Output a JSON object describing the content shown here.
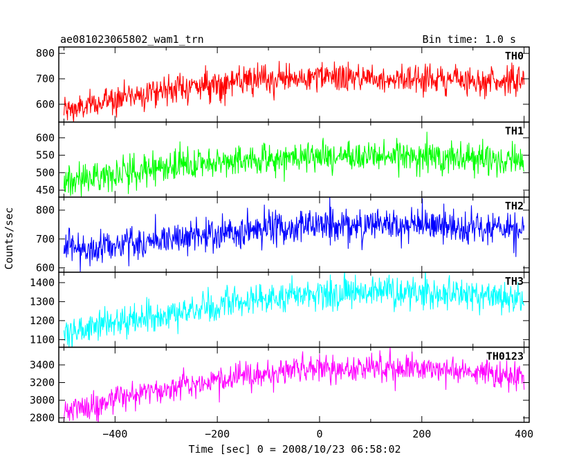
{
  "header": {
    "title": "ae081023065802_wam1_trn",
    "bin_time": "Bin time: 1.0 s"
  },
  "chart_data": {
    "type": "line",
    "xlabel": "Time [sec] 0 = 2008/10/23 06:58:02",
    "ylabel": "Counts/sec",
    "xlim": [
      -510,
      410
    ],
    "xticks": [
      -400,
      -200,
      0,
      200,
      400
    ],
    "xtick_labels": [
      "−400",
      "−200",
      "0",
      "200",
      "400"
    ],
    "panels": [
      {
        "name": "TH0",
        "color": "#ff0000",
        "ylim": [
          530,
          825
        ],
        "yticks": [
          600,
          700,
          800
        ],
        "ytick_labels": [
          "600",
          "700",
          "800"
        ],
        "trend": {
          "x": [
            -500,
            -450,
            -400,
            -300,
            -200,
            -100,
            0,
            100,
            200,
            300,
            400
          ],
          "y": [
            575,
            590,
            625,
            660,
            680,
            695,
            705,
            705,
            700,
            695,
            690
          ]
        },
        "noise_sd": 28
      },
      {
        "name": "TH1",
        "color": "#00ff00",
        "ylim": [
          430,
          645
        ],
        "yticks": [
          450,
          500,
          550,
          600
        ],
        "ytick_labels": [
          "450",
          "500",
          "550",
          "600"
        ],
        "trend": {
          "x": [
            -500,
            -450,
            -400,
            -300,
            -200,
            -100,
            0,
            100,
            200,
            300,
            400
          ],
          "y": [
            475,
            485,
            500,
            515,
            530,
            540,
            545,
            548,
            548,
            540,
            535
          ]
        },
        "noise_sd": 22
      },
      {
        "name": "TH2",
        "color": "#0000ff",
        "ylim": [
          585,
          845
        ],
        "yticks": [
          600,
          700,
          800
        ],
        "ytick_labels": [
          "600",
          "700",
          "800"
        ],
        "trend": {
          "x": [
            -500,
            -450,
            -400,
            -300,
            -200,
            -100,
            0,
            100,
            200,
            300,
            400
          ],
          "y": [
            665,
            670,
            680,
            700,
            715,
            735,
            750,
            750,
            745,
            735,
            725
          ]
        },
        "noise_sd": 30
      },
      {
        "name": "TH3",
        "color": "#00ffff",
        "ylim": [
          1060,
          1455
        ],
        "yticks": [
          1100,
          1200,
          1300,
          1400
        ],
        "ytick_labels": [
          "1100",
          "1200",
          "1300",
          "1400"
        ],
        "trend": {
          "x": [
            -500,
            -450,
            -400,
            -300,
            -200,
            -180,
            -100,
            0,
            100,
            200,
            300,
            400
          ],
          "y": [
            1140,
            1160,
            1190,
            1230,
            1265,
            1300,
            1320,
            1340,
            1350,
            1350,
            1340,
            1310
          ]
        },
        "noise_sd": 40
      },
      {
        "name": "TH0123",
        "color": "#ff00ff",
        "ylim": [
          2750,
          3600
        ],
        "yticks": [
          2800,
          3000,
          3200,
          3400
        ],
        "ytick_labels": [
          "2800",
          "3000",
          "3200",
          "3400"
        ],
        "trend": {
          "x": [
            -500,
            -450,
            -400,
            -300,
            -200,
            -100,
            0,
            100,
            200,
            300,
            400
          ],
          "y": [
            2880,
            2930,
            3010,
            3140,
            3230,
            3300,
            3350,
            3380,
            3360,
            3320,
            3280
          ]
        },
        "noise_sd": 75
      }
    ]
  }
}
